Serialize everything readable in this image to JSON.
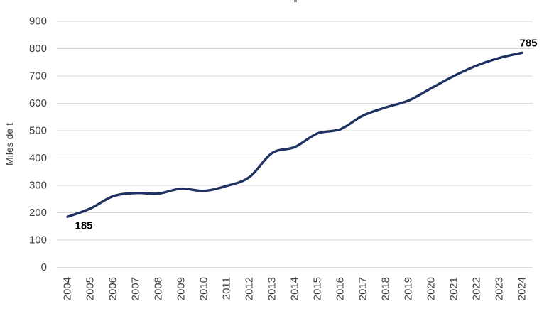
{
  "chart_data": {
    "type": "line",
    "title": "",
    "ylabel": "Miles de t",
    "xlabel": "",
    "x": [
      2004,
      2005,
      2006,
      2007,
      2008,
      2009,
      2010,
      2011,
      2012,
      2013,
      2014,
      2015,
      2016,
      2017,
      2018,
      2019,
      2020,
      2021,
      2022,
      2023,
      2024
    ],
    "values": [
      185,
      215,
      260,
      272,
      270,
      288,
      280,
      298,
      330,
      418,
      440,
      490,
      505,
      555,
      585,
      610,
      655,
      700,
      738,
      766,
      785
    ],
    "ylim": [
      0,
      900
    ],
    "ytick_step": 100,
    "grid": "horizontal-only",
    "legend": "none",
    "point_labels": [
      {
        "x": 2004,
        "label": "185",
        "placement": "below-start"
      },
      {
        "x": 2024,
        "label": "785",
        "placement": "above-end"
      }
    ],
    "colors": {
      "line": "#1f3160",
      "gridline": "#d9d9d9",
      "tick_text": "#3f3f3f",
      "point_label_text": "#050505"
    }
  }
}
